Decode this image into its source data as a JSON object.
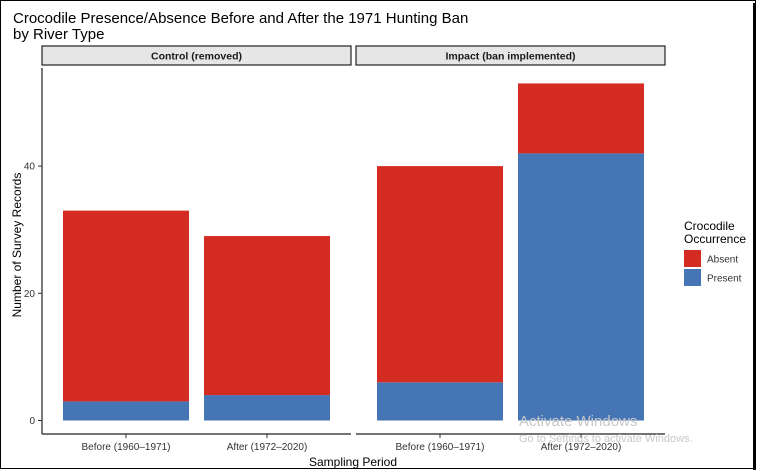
{
  "chart_data": {
    "type": "bar",
    "stacked": true,
    "title": "Crocodile Presence/Absence Before and After the 1971 Hunting Ban",
    "subtitle": "by River Type",
    "xlabel": "Sampling Period",
    "ylabel": "Number of Survey Records",
    "ylim": [
      0,
      55
    ],
    "yticks": [
      0,
      20,
      40
    ],
    "grid": false,
    "legend": {
      "title_lines": [
        "Crocodile",
        "Occurrence"
      ],
      "position": "right"
    },
    "panels": [
      {
        "strip": "Control (removed)",
        "categories": [
          "Before (1960–1971)",
          "After (1972–2020)"
        ],
        "series": [
          {
            "name": "Present",
            "values": [
              3,
              4
            ]
          },
          {
            "name": "Absent",
            "values": [
              30,
              25
            ]
          }
        ]
      },
      {
        "strip": "Impact (ban implemented)",
        "categories": [
          "Before (1960–1971)",
          "After (1972–2020)"
        ],
        "series": [
          {
            "name": "Present",
            "values": [
              6,
              42
            ]
          },
          {
            "name": "Absent",
            "values": [
              34,
              11
            ]
          }
        ]
      }
    ],
    "colors": {
      "Absent": "#d42c22",
      "Present": "#4575b4"
    }
  },
  "watermark": {
    "line1": "Activate Windows",
    "line2": "Go to Settings to activate Windows."
  }
}
